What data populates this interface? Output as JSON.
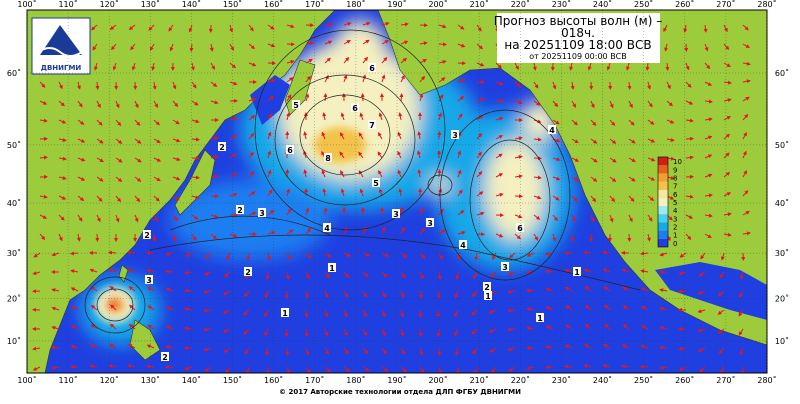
{
  "header": {
    "title": [
      "Прогноз высоты волн (м) –",
      "018ч.",
      "на 20251109 18:00 ВСВ"
    ],
    "subtitle": "от 20251109 00:00 ВСВ",
    "logo": "ДВНИГМИ"
  },
  "map": {
    "lon_ticks": [
      {
        "value": 100,
        "label": "100˚"
      },
      {
        "value": 110,
        "label": "110˚"
      },
      {
        "value": 120,
        "label": "120˚"
      },
      {
        "value": 130,
        "label": "130˚"
      },
      {
        "value": 140,
        "label": "140˚"
      },
      {
        "value": 150,
        "label": "150˚"
      },
      {
        "value": 160,
        "label": "160˚"
      },
      {
        "value": 170,
        "label": "170˚"
      },
      {
        "value": 180,
        "label": "180˚"
      },
      {
        "value": 190,
        "label": "190˚"
      },
      {
        "value": 200,
        "label": "200˚"
      },
      {
        "value": 210,
        "label": "210˚"
      },
      {
        "value": 220,
        "label": "220˚"
      },
      {
        "value": 230,
        "label": "230˚"
      },
      {
        "value": 240,
        "label": "240˚"
      },
      {
        "value": 250,
        "label": "250˚"
      },
      {
        "value": 260,
        "label": "260˚"
      },
      {
        "value": 270,
        "label": "270˚"
      },
      {
        "value": 280,
        "label": "280˚"
      }
    ],
    "lat_ticks": [
      {
        "value": 10,
        "label": "10˚"
      },
      {
        "value": 20,
        "label": "20˚"
      },
      {
        "value": 30,
        "label": "30˚"
      },
      {
        "value": 40,
        "label": "40˚"
      },
      {
        "value": 50,
        "label": "50˚"
      },
      {
        "value": 60,
        "label": "60˚"
      }
    ],
    "colorbar": [
      0,
      1,
      2,
      3,
      4,
      5,
      6,
      7,
      8,
      9,
      10
    ],
    "contour_labels": [
      "6",
      "5",
      "6",
      "7",
      "6",
      "8",
      "5",
      "4",
      "3",
      "3",
      "2",
      "2",
      "3",
      "4",
      "3",
      "6",
      "4",
      "3",
      "2",
      "1",
      "1",
      "2",
      "1",
      "1",
      "2",
      "3",
      "2",
      "1"
    ]
  },
  "footer": "© 2017 Авторские технологии отдела ДЛП ФГБУ ДВНИГМИ"
}
